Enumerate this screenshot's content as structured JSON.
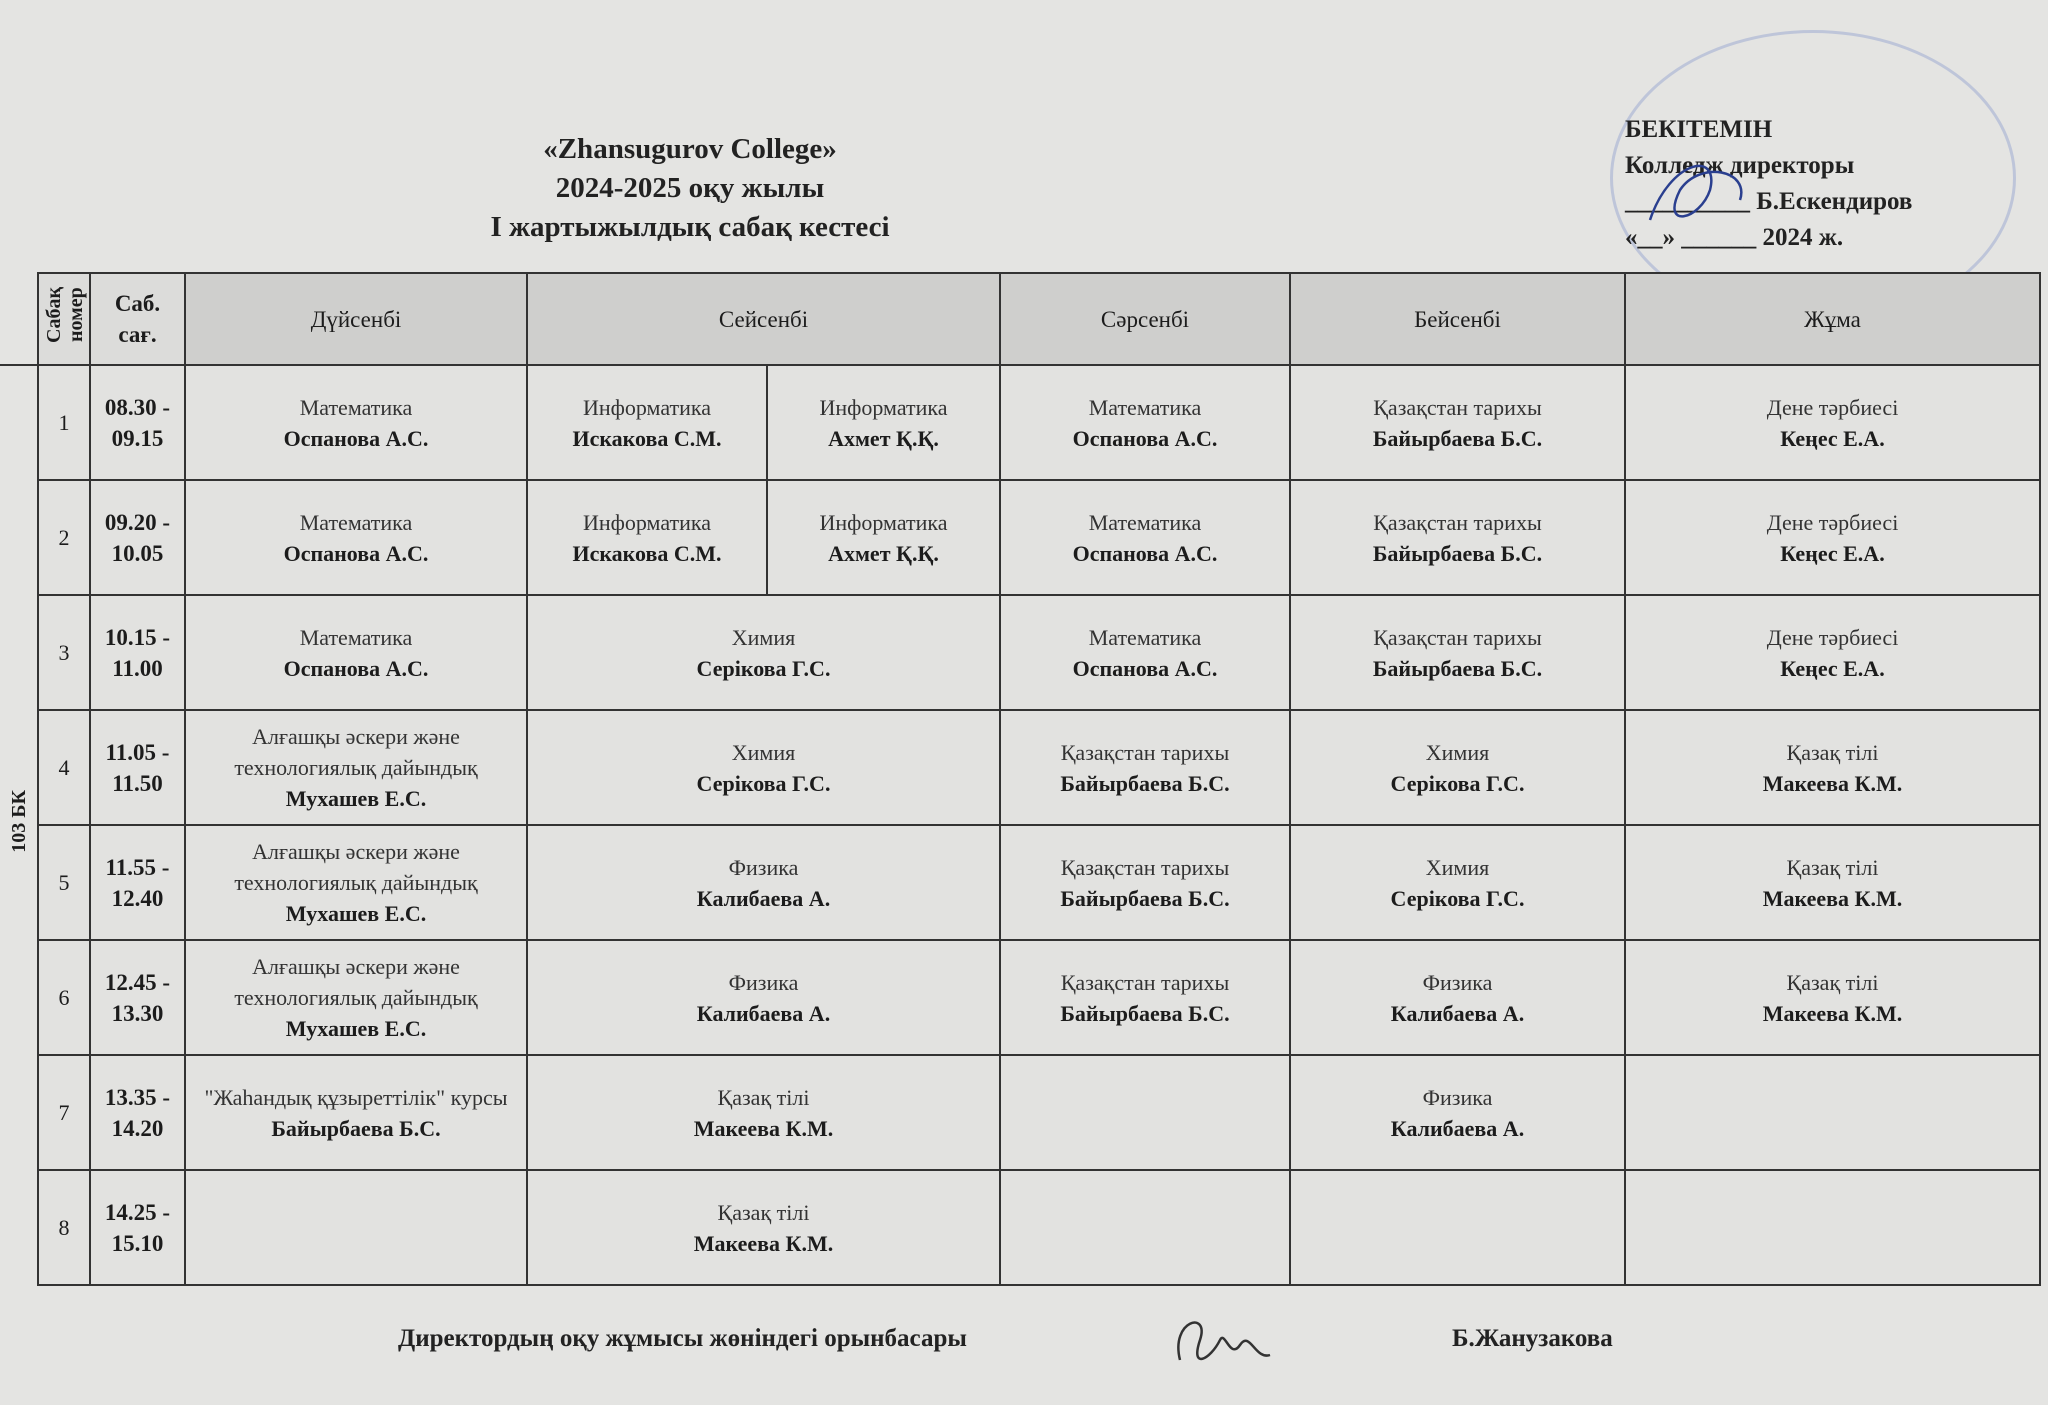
{
  "header": {
    "college": "«Zhansugurov College»",
    "year": "2024-2025 оқу жылы",
    "title": "I жартыжылдық  сабақ кестесі"
  },
  "approval": {
    "line1": "БЕКІТЕМІН",
    "line2": "Колледж директоры",
    "line3": "__________ Б.Ескендиров",
    "line4": "«__» ______ 2024 ж."
  },
  "table": {
    "group": "103 БК",
    "headers": [
      "Сабақ номер",
      "Саб. сағ.",
      "Дүйсенбі",
      "Сейсенбі",
      "Сәрсенбі",
      "Бейсенбі",
      "Жұма"
    ],
    "rows": [
      {
        "num": "1",
        "time": "08.30 - 09.15",
        "cells": [
          {
            "subject": "Математика",
            "teacher": "Оспанова А.С."
          },
          {
            "subject": "Информатика",
            "teacher": "Искакова С.М."
          },
          {
            "subject": "Информатика",
            "teacher": "Ахмет Қ.Қ."
          },
          {
            "subject": "Математика",
            "teacher": "Оспанова А.С."
          },
          {
            "subject": "Қазақстан тарихы",
            "teacher": "Байырбаева Б.С."
          },
          {
            "subject": "Дене тәрбиесі",
            "teacher": "Кеңес Е.А."
          }
        ]
      },
      {
        "num": "2",
        "time": "09.20 - 10.05",
        "cells": [
          {
            "subject": "Математика",
            "teacher": "Оспанова А.С."
          },
          {
            "subject": "Информатика",
            "teacher": "Искакова С.М."
          },
          {
            "subject": "Информатика",
            "teacher": "Ахмет Қ.Қ."
          },
          {
            "subject": "Математика",
            "teacher": "Оспанова А.С."
          },
          {
            "subject": "Қазақстан тарихы",
            "teacher": "Байырбаева Б.С."
          },
          {
            "subject": "Дене тәрбиесі",
            "teacher": "Кеңес Е.А."
          }
        ]
      },
      {
        "num": "3",
        "time": "10.15 - 11.00",
        "cells": [
          {
            "subject": "Математика",
            "teacher": "Оспанова А.С."
          },
          {
            "subject": "Химия",
            "teacher": "Серікова Г.С.",
            "span": 2
          },
          {
            "subject": "Математика",
            "teacher": "Оспанова А.С."
          },
          {
            "subject": "Қазақстан тарихы",
            "teacher": "Байырбаева Б.С."
          },
          {
            "subject": "Дене тәрбиесі",
            "teacher": "Кеңес Е.А."
          }
        ]
      },
      {
        "num": "4",
        "time": "11.05 - 11.50",
        "cells": [
          {
            "subject": "Алғашқы әскери және технологиялық дайындық",
            "teacher": "Мухашев Е.С."
          },
          {
            "subject": "Химия",
            "teacher": "Серікова Г.С.",
            "span": 2
          },
          {
            "subject": "Қазақстан тарихы",
            "teacher": "Байырбаева Б.С."
          },
          {
            "subject": "Химия",
            "teacher": "Серікова Г.С."
          },
          {
            "subject": "Қазақ тілі",
            "teacher": "Макеева К.М."
          }
        ]
      },
      {
        "num": "5",
        "time": "11.55 - 12.40",
        "cells": [
          {
            "subject": "Алғашқы әскери және технологиялық дайындық",
            "teacher": "Мухашев Е.С."
          },
          {
            "subject": "Физика",
            "teacher": "Калибаева А.",
            "span": 2
          },
          {
            "subject": "Қазақстан тарихы",
            "teacher": "Байырбаева Б.С."
          },
          {
            "subject": "Химия",
            "teacher": "Серікова Г.С."
          },
          {
            "subject": "Қазақ тілі",
            "teacher": "Макеева К.М."
          }
        ]
      },
      {
        "num": "6",
        "time": "12.45 - 13.30",
        "cells": [
          {
            "subject": "Алғашқы әскери және технологиялық дайындық",
            "teacher": "Мухашев Е.С."
          },
          {
            "subject": "Физика",
            "teacher": "Калибаева А.",
            "span": 2
          },
          {
            "subject": "Қазақстан тарихы",
            "teacher": "Байырбаева Б.С."
          },
          {
            "subject": "Физика",
            "teacher": "Калибаева А."
          },
          {
            "subject": "Қазақ тілі",
            "teacher": "Макеева К.М."
          }
        ]
      },
      {
        "num": "7",
        "time": "13.35 - 14.20",
        "cells": [
          {
            "subject": "\"Жаһандық құзыреттілік\" курсы",
            "teacher": "Байырбаева Б.С."
          },
          {
            "subject": "Қазақ тілі",
            "teacher": "Макеева К.М.",
            "span": 2
          },
          {
            "subject": "",
            "teacher": ""
          },
          {
            "subject": "Физика",
            "teacher": "Калибаева А."
          },
          {
            "subject": "",
            "teacher": ""
          }
        ]
      },
      {
        "num": "8",
        "time": "14.25 - 15.10",
        "cells": [
          {
            "subject": "",
            "teacher": ""
          },
          {
            "subject": "Қазақ тілі",
            "teacher": "Макеева К.М.",
            "span": 2
          },
          {
            "subject": "",
            "teacher": ""
          },
          {
            "subject": "",
            "teacher": ""
          },
          {
            "subject": "",
            "teacher": ""
          }
        ]
      }
    ]
  },
  "footer": {
    "position": "Директордың оқу жұмысы жөніндегі орынбасары",
    "name": "Б.Жанузакова"
  }
}
